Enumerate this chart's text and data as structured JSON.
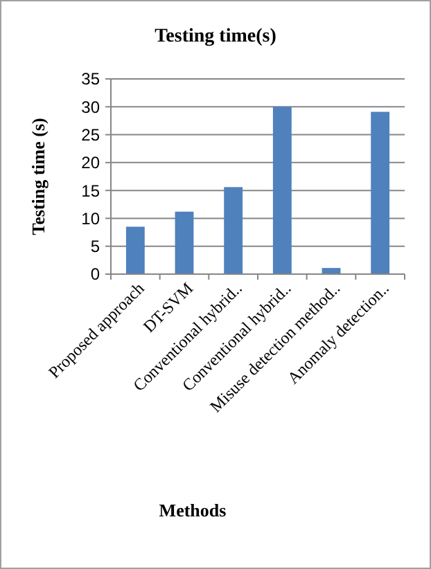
{
  "chart_data": {
    "type": "bar",
    "title": "Testing time(s)",
    "xlabel": "Methods",
    "ylabel": "Testing time (s)",
    "categories": [
      "Proposed approach",
      "DT-SVM",
      "Conventional hybrid..",
      "Conventional hybrid..",
      "Misuse detection method..",
      "Anomaly detection.."
    ],
    "values": [
      8.5,
      11.2,
      15.6,
      30,
      1.1,
      29.1
    ],
    "color": "#4f81bd",
    "ylim": [
      0,
      35
    ],
    "yticks": [
      0,
      5,
      10,
      15,
      20,
      25,
      30,
      35
    ],
    "grid": "y"
  }
}
